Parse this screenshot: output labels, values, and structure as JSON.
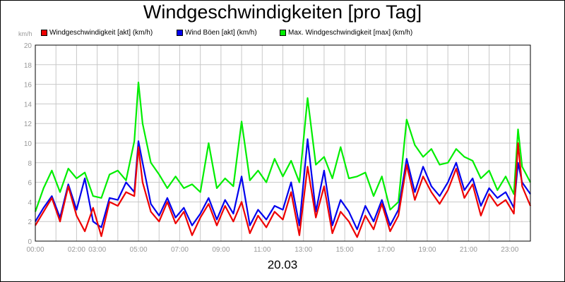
{
  "chart_data": {
    "type": "line",
    "title": "Windgeschwindigkeiten [pro Tag]",
    "unit_label": "km/h",
    "date_label": "20.03",
    "ylim": [
      0,
      20
    ],
    "y_ticks": [
      "0",
      "2",
      "4",
      "6",
      "8",
      "10",
      "12",
      "14",
      "16",
      "18",
      "20"
    ],
    "xlim": [
      0,
      24
    ],
    "x_ticks": [
      {
        "t": 0,
        "label": "00:00"
      },
      {
        "t": 2,
        "label": "02:00"
      },
      {
        "t": 3,
        "label": "03:00"
      },
      {
        "t": 5,
        "label": "05:00"
      },
      {
        "t": 7,
        "label": "07:00"
      },
      {
        "t": 9,
        "label": "09:00"
      },
      {
        "t": 11,
        "label": "11:00"
      },
      {
        "t": 13,
        "label": "13:00"
      },
      {
        "t": 15,
        "label": "15:00"
      },
      {
        "t": 17,
        "label": "17:00"
      },
      {
        "t": 19,
        "label": "19:00"
      },
      {
        "t": 21,
        "label": "21:00"
      },
      {
        "t": 23,
        "label": "23:00"
      }
    ],
    "grid": true,
    "legend_position": "top",
    "series": [
      {
        "name": "Windgeschwindigkeit [akt] (km/h)",
        "color": "#ee0000",
        "x": [
          0.0,
          0.4,
          0.8,
          1.2,
          1.6,
          2.0,
          2.4,
          2.8,
          3.2,
          3.6,
          4.0,
          4.4,
          4.8,
          5.0,
          5.2,
          5.6,
          6.0,
          6.4,
          6.8,
          7.2,
          7.6,
          8.0,
          8.4,
          8.8,
          9.2,
          9.6,
          10.0,
          10.4,
          10.8,
          11.2,
          11.6,
          12.0,
          12.4,
          12.8,
          13.2,
          13.6,
          14.0,
          14.4,
          14.8,
          15.2,
          15.6,
          16.0,
          16.4,
          16.8,
          17.2,
          17.6,
          18.0,
          18.4,
          18.8,
          19.2,
          19.6,
          20.0,
          20.4,
          20.8,
          21.2,
          21.6,
          22.0,
          22.4,
          22.8,
          23.2,
          23.4,
          23.6,
          24.0
        ],
        "y": [
          1.6,
          3.0,
          4.4,
          2.0,
          5.6,
          2.6,
          1.0,
          3.4,
          0.5,
          4.0,
          3.6,
          5.0,
          4.6,
          9.6,
          6.0,
          3.0,
          2.0,
          4.0,
          1.8,
          3.0,
          0.6,
          2.4,
          3.8,
          1.6,
          3.6,
          2.0,
          4.0,
          0.8,
          2.6,
          1.4,
          3.0,
          2.2,
          5.0,
          0.6,
          7.6,
          2.4,
          5.6,
          0.8,
          3.0,
          2.0,
          0.4,
          2.6,
          1.2,
          3.8,
          1.0,
          2.6,
          7.8,
          4.2,
          6.6,
          5.0,
          3.8,
          5.2,
          7.4,
          4.4,
          5.8,
          2.6,
          4.8,
          3.6,
          4.2,
          2.8,
          10.0,
          5.6,
          3.6
        ]
      },
      {
        "name": "Wind Böen [akt] (km/h)",
        "color": "#0000ee",
        "x": [
          0.0,
          0.4,
          0.8,
          1.2,
          1.6,
          2.0,
          2.4,
          2.8,
          3.2,
          3.6,
          4.0,
          4.4,
          4.8,
          5.0,
          5.2,
          5.6,
          6.0,
          6.4,
          6.8,
          7.2,
          7.6,
          8.0,
          8.4,
          8.8,
          9.2,
          9.6,
          10.0,
          10.4,
          10.8,
          11.2,
          11.6,
          12.0,
          12.4,
          12.8,
          13.2,
          13.6,
          14.0,
          14.4,
          14.8,
          15.2,
          15.6,
          16.0,
          16.4,
          16.8,
          17.2,
          17.6,
          18.0,
          18.4,
          18.8,
          19.2,
          19.6,
          20.0,
          20.4,
          20.8,
          21.2,
          21.6,
          22.0,
          22.4,
          22.8,
          23.2,
          23.4,
          23.6,
          24.0
        ],
        "y": [
          2.0,
          3.4,
          4.6,
          2.4,
          5.8,
          3.2,
          6.4,
          2.0,
          1.4,
          4.4,
          4.2,
          6.0,
          5.0,
          10.2,
          8.0,
          3.8,
          2.6,
          4.4,
          2.4,
          3.4,
          1.6,
          2.8,
          4.4,
          2.2,
          4.2,
          2.8,
          6.6,
          1.6,
          3.2,
          2.2,
          3.6,
          3.2,
          6.0,
          1.6,
          10.4,
          3.0,
          7.2,
          1.6,
          4.2,
          3.0,
          1.2,
          3.6,
          2.0,
          4.2,
          1.6,
          3.2,
          8.4,
          5.0,
          7.6,
          5.6,
          4.6,
          6.0,
          8.0,
          5.2,
          6.4,
          3.6,
          5.4,
          4.4,
          5.0,
          3.4,
          8.0,
          6.0,
          4.8
        ]
      },
      {
        "name": "Max. Windgeschwindigkeit [max] (km/h)",
        "color": "#00ee00",
        "x": [
          0.0,
          0.4,
          0.8,
          1.2,
          1.6,
          2.0,
          2.4,
          2.8,
          3.2,
          3.6,
          4.0,
          4.4,
          4.8,
          5.0,
          5.2,
          5.6,
          6.0,
          6.4,
          6.8,
          7.2,
          7.6,
          8.0,
          8.4,
          8.8,
          9.2,
          9.6,
          10.0,
          10.4,
          10.8,
          11.2,
          11.6,
          12.0,
          12.4,
          12.8,
          13.2,
          13.6,
          14.0,
          14.4,
          14.8,
          15.2,
          15.6,
          16.0,
          16.4,
          16.8,
          17.2,
          17.6,
          18.0,
          18.4,
          18.8,
          19.2,
          19.6,
          20.0,
          20.4,
          20.8,
          21.2,
          21.6,
          22.0,
          22.4,
          22.8,
          23.2,
          23.4,
          23.6,
          24.0
        ],
        "y": [
          3.0,
          5.4,
          7.2,
          5.0,
          7.4,
          6.4,
          7.0,
          4.6,
          4.4,
          6.8,
          7.2,
          6.2,
          10.2,
          16.2,
          12.0,
          8.0,
          6.8,
          5.4,
          6.6,
          5.4,
          5.8,
          5.0,
          10.0,
          5.4,
          6.4,
          5.6,
          12.2,
          6.2,
          7.2,
          6.0,
          8.4,
          6.6,
          8.2,
          6.0,
          14.6,
          7.8,
          8.6,
          6.4,
          9.6,
          6.4,
          6.6,
          7.0,
          4.6,
          6.6,
          3.2,
          4.0,
          12.4,
          9.8,
          8.6,
          9.4,
          7.8,
          8.0,
          9.4,
          8.6,
          8.2,
          6.4,
          7.2,
          5.2,
          6.6,
          4.8,
          11.4,
          7.6,
          6.0
        ]
      }
    ]
  }
}
